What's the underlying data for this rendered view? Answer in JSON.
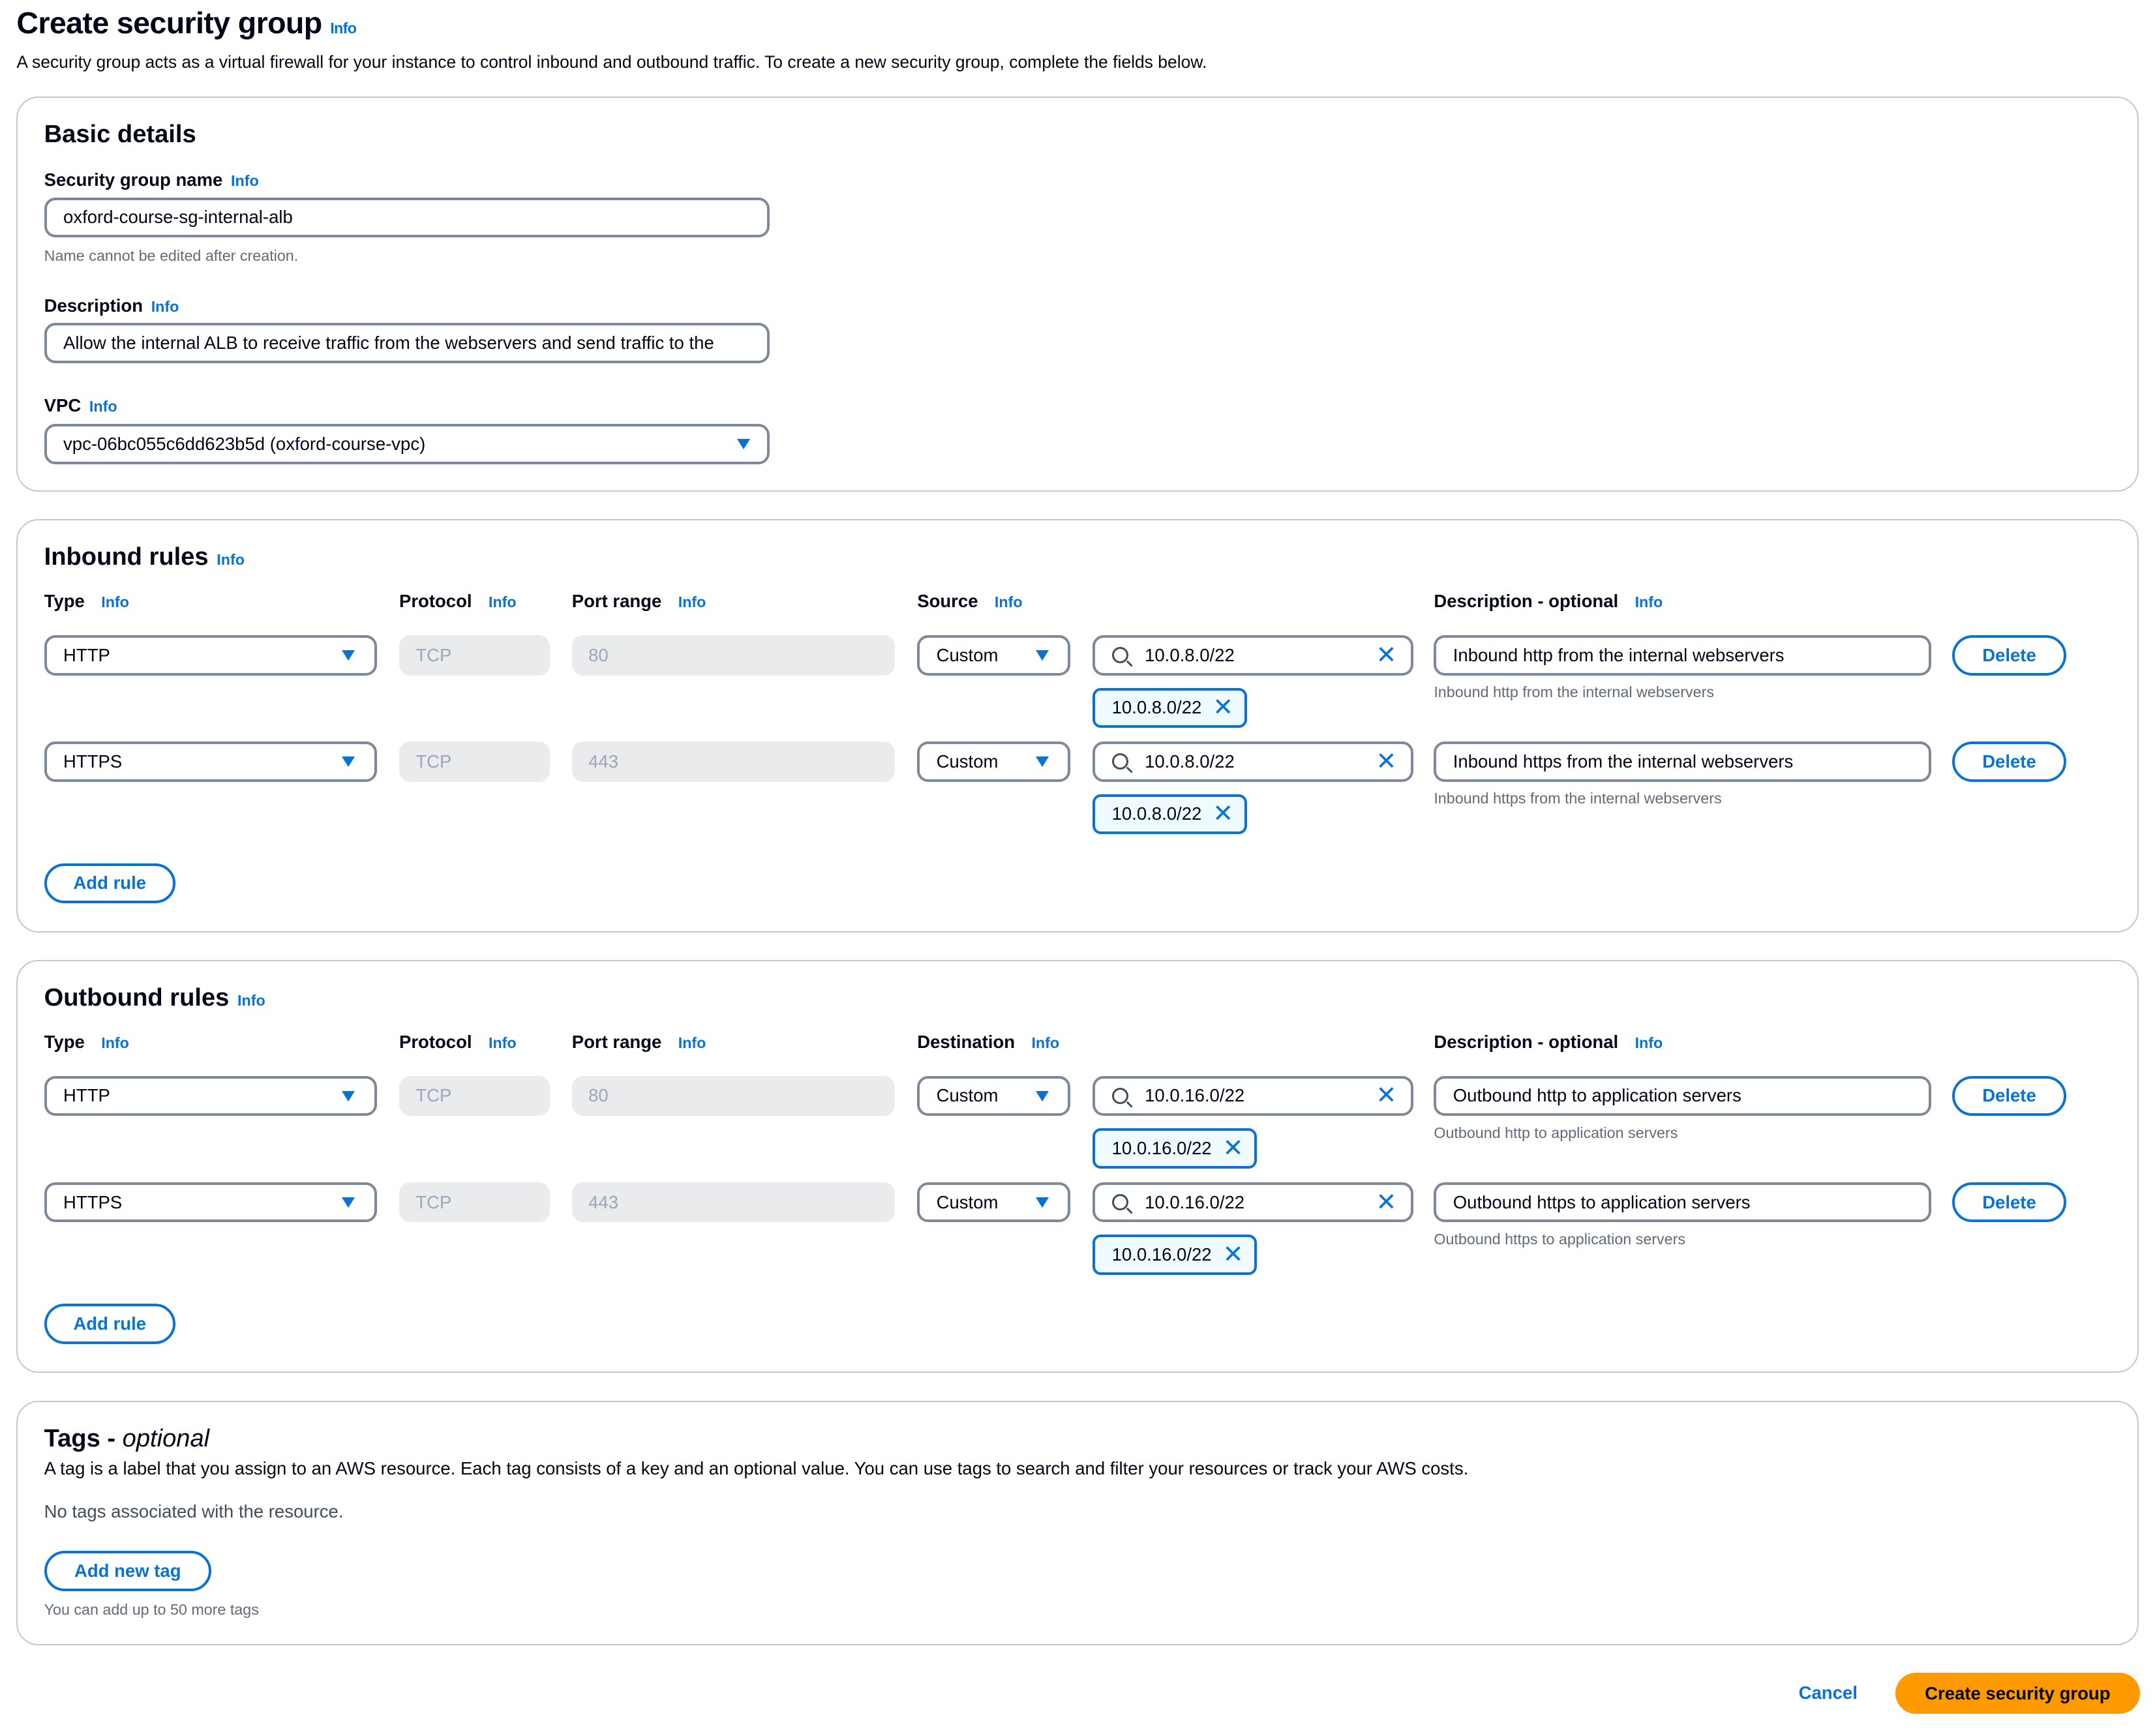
{
  "header": {
    "title": "Create security group",
    "info": "Info",
    "description": "A security group acts as a virtual firewall for your instance to control inbound and outbound traffic. To create a new security group, complete the fields below."
  },
  "basic": {
    "title": "Basic details",
    "name_label": "Security group name",
    "name_value": "oxford-course-sg-internal-alb",
    "name_hint": "Name cannot be edited after creation.",
    "desc_label": "Description",
    "desc_value": "Allow the internal ALB to receive traffic from the webservers and send traffic to the",
    "vpc_label": "VPC",
    "vpc_value": "vpc-06bc055c6dd623b5d (oxford-course-vpc)"
  },
  "inbound": {
    "title": "Inbound rules",
    "columns": {
      "type": "Type",
      "protocol": "Protocol",
      "port": "Port range",
      "target": "Source",
      "desc": "Description - optional"
    },
    "rules": [
      {
        "type": "HTTP",
        "protocol": "TCP",
        "port": "80",
        "target_mode": "Custom",
        "cidr": "10.0.8.0/22",
        "chip": "10.0.8.0/22",
        "desc": "Inbound http from the internal webservers",
        "desc_hint": "Inbound http from the internal webservers",
        "delete": "Delete"
      },
      {
        "type": "HTTPS",
        "protocol": "TCP",
        "port": "443",
        "target_mode": "Custom",
        "cidr": "10.0.8.0/22",
        "chip": "10.0.8.0/22",
        "desc": "Inbound https from the internal webservers",
        "desc_hint": "Inbound https from the internal webservers",
        "delete": "Delete"
      }
    ],
    "add_rule": "Add rule"
  },
  "outbound": {
    "title": "Outbound rules",
    "columns": {
      "type": "Type",
      "protocol": "Protocol",
      "port": "Port range",
      "target": "Destination",
      "desc": "Description - optional"
    },
    "rules": [
      {
        "type": "HTTP",
        "protocol": "TCP",
        "port": "80",
        "target_mode": "Custom",
        "cidr": "10.0.16.0/22",
        "chip": "10.0.16.0/22",
        "desc": "Outbound http to application servers",
        "desc_hint": "Outbound http to application servers",
        "delete": "Delete"
      },
      {
        "type": "HTTPS",
        "protocol": "TCP",
        "port": "443",
        "target_mode": "Custom",
        "cidr": "10.0.16.0/22",
        "chip": "10.0.16.0/22",
        "desc": "Outbound https to application servers",
        "desc_hint": "Outbound https to application servers",
        "delete": "Delete"
      }
    ],
    "add_rule": "Add rule"
  },
  "tags": {
    "title": "Tags - ",
    "title_optional": "optional",
    "description": "A tag is a label that you assign to an AWS resource. Each tag consists of a key and an optional value. You can use tags to search and filter your resources or track your AWS costs.",
    "empty": "No tags associated with the resource.",
    "add_button": "Add new tag",
    "hint": "You can add up to 50 more tags"
  },
  "footer": {
    "cancel": "Cancel",
    "create": "Create security group"
  },
  "colors": {
    "accent": "#0972d3",
    "primary_button": "#ff9900",
    "border": "#7d8998"
  }
}
